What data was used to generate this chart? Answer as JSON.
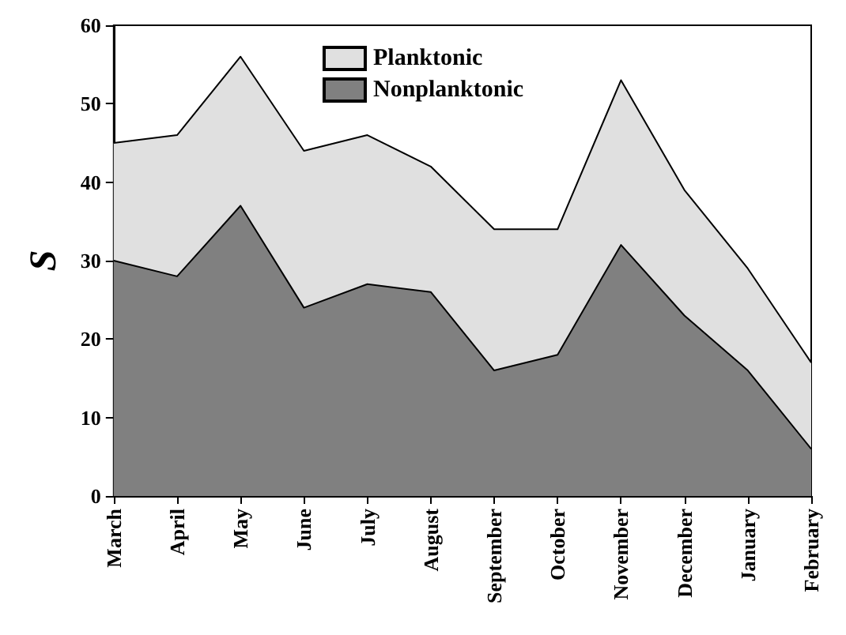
{
  "chart_data": {
    "type": "area",
    "stacked": true,
    "ylabel": "S",
    "categories": [
      "March",
      "April",
      "May",
      "June",
      "July",
      "August",
      "September",
      "October",
      "November",
      "December",
      "January",
      "February"
    ],
    "series": [
      {
        "name": "Nonplanktonic",
        "color": "#808080",
        "values": [
          30,
          28,
          37,
          24,
          27,
          26,
          16,
          18,
          32,
          23,
          16,
          6
        ]
      },
      {
        "name": "Planktonic",
        "color": "#e0e0e0",
        "values": [
          15,
          18,
          19,
          20,
          19,
          16,
          18,
          16,
          21,
          16,
          13,
          11
        ]
      }
    ],
    "ylim": [
      0,
      60
    ],
    "yticks": [
      0,
      10,
      20,
      30,
      40,
      50,
      60
    ],
    "grid": false,
    "legend": "top",
    "marker": "none",
    "line_style": "solid"
  }
}
